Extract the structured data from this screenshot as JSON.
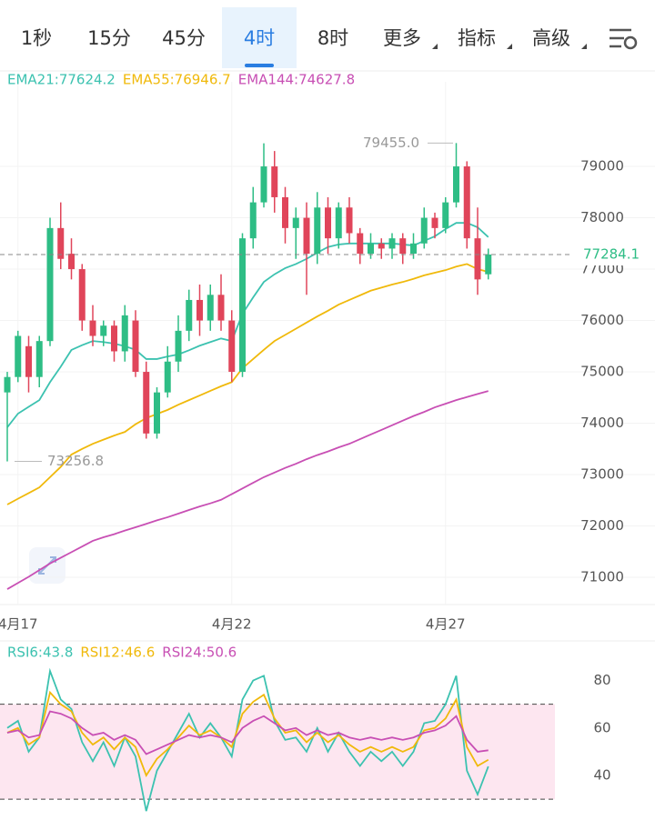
{
  "toolbar": {
    "tabs": [
      {
        "label": "1秒"
      },
      {
        "label": "15分"
      },
      {
        "label": "45分"
      },
      {
        "label": "4时"
      },
      {
        "label": "8时"
      },
      {
        "label": "更多",
        "dropdown": true
      },
      {
        "label": "指标",
        "dropdown": true
      },
      {
        "label": "高级",
        "dropdown": true
      }
    ],
    "active": 3
  },
  "chart_data": [
    {
      "type": "candlestick",
      "categories": [
        null,
        "4月17",
        null,
        null,
        null,
        null,
        null,
        null,
        null,
        null,
        null,
        null,
        null,
        null,
        null,
        null,
        null,
        null,
        null,
        null,
        null,
        "4月22",
        null,
        null,
        null,
        null,
        null,
        null,
        null,
        null,
        null,
        null,
        null,
        null,
        null,
        null,
        null,
        null,
        null,
        null,
        null,
        "4月27",
        null,
        null,
        null,
        null
      ],
      "open": [
        74600,
        74900,
        75500,
        74900,
        75600,
        77800,
        77300,
        77000,
        76000,
        75700,
        75900,
        75400,
        76000,
        75000,
        73800,
        74600,
        75200,
        75800,
        76400,
        76000,
        76500,
        76000,
        75000,
        77600,
        78300,
        79000,
        78400,
        77800,
        78000,
        77300,
        78200,
        77600,
        78200,
        77700,
        77300,
        77500,
        77400,
        77600,
        77300,
        77500,
        78000,
        77800,
        78300,
        79000,
        77600,
        76900
      ],
      "high": [
        75000,
        75800,
        75700,
        75700,
        78000,
        78300,
        77600,
        77100,
        76300,
        76000,
        76000,
        76300,
        76200,
        75200,
        74700,
        75500,
        76100,
        76600,
        76700,
        76700,
        76900,
        76200,
        77700,
        78600,
        79450,
        79300,
        78600,
        78200,
        78300,
        78500,
        78400,
        78300,
        78400,
        77800,
        77700,
        77600,
        77700,
        77700,
        77700,
        78200,
        78100,
        78400,
        79455,
        79100,
        78200,
        77400
      ],
      "low": [
        73256.8,
        74800,
        74600,
        74700,
        75500,
        77000,
        76800,
        75800,
        75500,
        75500,
        75200,
        75200,
        74900,
        73700,
        73700,
        74500,
        75000,
        75600,
        75700,
        75800,
        75800,
        74800,
        74900,
        77400,
        78200,
        78100,
        77500,
        77200,
        76500,
        77100,
        77300,
        77400,
        77500,
        77100,
        77200,
        77200,
        77200,
        77100,
        77200,
        77400,
        77600,
        77700,
        78200,
        77400,
        76500,
        76800
      ],
      "close": [
        74900,
        75700,
        74900,
        75600,
        77800,
        77200,
        77000,
        76000,
        75700,
        75900,
        75400,
        76100,
        75000,
        73800,
        74600,
        75200,
        75800,
        76400,
        76000,
        76500,
        76000,
        75000,
        77600,
        78300,
        79000,
        78400,
        77800,
        78000,
        77300,
        78200,
        77600,
        78200,
        77700,
        77300,
        77500,
        77400,
        77600,
        77300,
        77500,
        78000,
        77800,
        78300,
        79000,
        77600,
        76800,
        77284.1
      ],
      "up_color": "#2ebd85",
      "down_color": "#e0455a",
      "series": [
        {
          "name": "EMA21:77624.2",
          "color": "#3cc2b0",
          "values": [
            73920,
            74187,
            74320,
            74450,
            74800,
            75100,
            75426,
            75520,
            75600,
            75580,
            75550,
            75500,
            75430,
            75250,
            75250,
            75300,
            75340,
            75420,
            75510,
            75580,
            75650,
            75600,
            76130,
            76450,
            76750,
            76900,
            77020,
            77100,
            77200,
            77320,
            77430,
            77480,
            77500,
            77500,
            77500,
            77500,
            77500,
            77480,
            77460,
            77550,
            77640,
            77780,
            77900,
            77900,
            77815,
            77624.2
          ]
        },
        {
          "name": "EMA55:76946.7",
          "color": "#f0b90b",
          "values": [
            72417,
            72530,
            72640,
            72750,
            72950,
            73150,
            73390,
            73500,
            73600,
            73680,
            73760,
            73830,
            73980,
            74100,
            74180,
            74260,
            74360,
            74450,
            74540,
            74630,
            74720,
            74800,
            75070,
            75250,
            75430,
            75600,
            75720,
            75840,
            75960,
            76080,
            76190,
            76310,
            76400,
            76490,
            76580,
            76640,
            76700,
            76750,
            76810,
            76880,
            76930,
            76980,
            77050,
            77100,
            77000,
            76946.7
          ]
        },
        {
          "name": "EMA144:74627.8",
          "color": "#c84fb4",
          "values": [
            70770,
            70890,
            71010,
            71140,
            71270,
            71380,
            71490,
            71600,
            71710,
            71780,
            71840,
            71910,
            71975,
            72040,
            72110,
            72170,
            72240,
            72310,
            72380,
            72440,
            72510,
            72620,
            72730,
            72840,
            72950,
            73040,
            73130,
            73210,
            73300,
            73380,
            73450,
            73530,
            73600,
            73690,
            73780,
            73870,
            73960,
            74050,
            74140,
            74220,
            74310,
            74380,
            74450,
            74510,
            74570,
            74627.8
          ]
        }
      ],
      "last_price": 77284.1,
      "high_marker": {
        "value": 79455,
        "label": "79455.0"
      },
      "low_marker": 73256.8,
      "ylim": [
        70470,
        80470
      ],
      "yticks": [
        71000,
        72000,
        73000,
        74000,
        75000,
        76000,
        77000,
        78000,
        79000
      ],
      "grid": true
    },
    {
      "type": "line",
      "series": [
        {
          "name": "RSI6:43.8",
          "color": "#3cc2b0",
          "values": [
            60,
            63,
            50,
            56,
            84,
            72,
            68,
            54,
            46,
            54,
            44,
            56,
            48,
            25,
            42,
            50,
            58,
            66,
            56,
            62,
            56,
            48,
            72,
            80,
            82,
            63,
            55,
            56,
            50,
            60,
            50,
            58,
            50,
            44,
            50,
            46,
            50,
            44,
            50,
            62,
            63,
            70,
            82,
            42,
            32,
            43.8
          ]
        },
        {
          "name": "RSI12:46.6",
          "color": "#f0b90b",
          "values": [
            58,
            60,
            53,
            56,
            75,
            70,
            67,
            58,
            53,
            56,
            51,
            56,
            52,
            40,
            47,
            51,
            56,
            61,
            57,
            59,
            56,
            52,
            66,
            71,
            74,
            64,
            58,
            59,
            54,
            58,
            54,
            57,
            53,
            50,
            52,
            50,
            52,
            50,
            52,
            59,
            60,
            64,
            72,
            52,
            44,
            46.6
          ]
        },
        {
          "name": "RSI24:50.6",
          "color": "#c84fb4",
          "values": [
            58,
            59,
            56,
            57,
            67,
            66,
            64,
            60,
            57,
            58,
            55,
            57,
            55,
            49,
            51,
            53,
            55,
            57,
            56,
            57,
            56,
            54,
            60,
            63,
            65,
            62,
            59,
            60,
            57,
            59,
            57,
            58,
            56,
            55,
            56,
            55,
            56,
            55,
            56,
            58,
            59,
            61,
            65,
            55,
            50,
            50.6
          ]
        }
      ],
      "bands": [
        30,
        70
      ],
      "band_color": "#fde6f0",
      "ylim": [
        22,
        94
      ],
      "yticks": [
        40,
        60,
        80
      ],
      "grid": false
    }
  ]
}
